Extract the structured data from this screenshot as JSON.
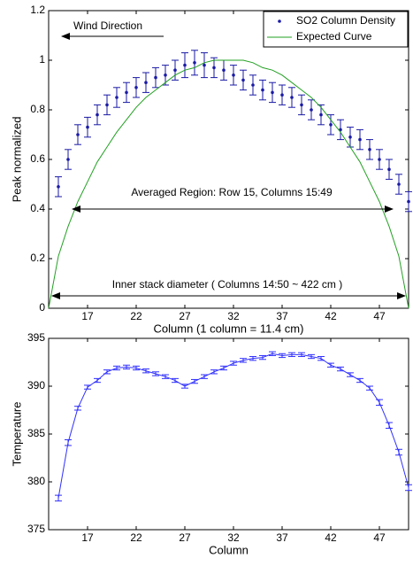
{
  "chart_data": [
    {
      "type": "errorbar",
      "xlabel": "Column (1 column = 11.4 cm)",
      "ylabel": "Peak normalized",
      "xlim": [
        13,
        50
      ],
      "xticks": [
        17,
        22,
        27,
        32,
        37,
        42,
        47
      ],
      "ylim": [
        0,
        1.2
      ],
      "yticks": [
        0,
        0.2,
        0.4,
        0.6,
        0.8,
        1,
        1.2
      ],
      "legend": "northeast",
      "series": [
        {
          "name": "SO2 Column Density",
          "color": "#1a1aa6",
          "mode": "markers",
          "x": [
            14,
            15,
            16,
            17,
            18,
            19,
            20,
            21,
            22,
            23,
            24,
            25,
            26,
            27,
            28,
            29,
            30,
            31,
            32,
            33,
            34,
            35,
            36,
            37,
            38,
            39,
            40,
            41,
            42,
            43,
            44,
            45,
            46,
            47,
            48,
            49,
            50
          ],
          "values": [
            0.49,
            0.6,
            0.7,
            0.73,
            0.78,
            0.82,
            0.85,
            0.87,
            0.89,
            0.91,
            0.93,
            0.94,
            0.96,
            0.98,
            0.99,
            0.98,
            0.97,
            0.96,
            0.94,
            0.92,
            0.9,
            0.88,
            0.87,
            0.86,
            0.85,
            0.82,
            0.8,
            0.78,
            0.74,
            0.72,
            0.69,
            0.68,
            0.64,
            0.6,
            0.56,
            0.5,
            0.43
          ],
          "errors": [
            0.04,
            0.04,
            0.04,
            0.04,
            0.04,
            0.04,
            0.04,
            0.04,
            0.04,
            0.04,
            0.04,
            0.04,
            0.04,
            0.05,
            0.05,
            0.05,
            0.04,
            0.04,
            0.04,
            0.04,
            0.04,
            0.04,
            0.04,
            0.04,
            0.04,
            0.04,
            0.04,
            0.04,
            0.04,
            0.04,
            0.04,
            0.04,
            0.04,
            0.04,
            0.04,
            0.04,
            0.04
          ]
        },
        {
          "name": "Expected Curve",
          "color": "#22a022",
          "mode": "line",
          "x": [
            13,
            14,
            15,
            16,
            17,
            18,
            19,
            20,
            21,
            22,
            23,
            24,
            25,
            26,
            27,
            28,
            29,
            30,
            31,
            32,
            33,
            34,
            35,
            36,
            37,
            38,
            39,
            40,
            41,
            42,
            43,
            44,
            45,
            46,
            47,
            48,
            49,
            50
          ],
          "values": [
            0,
            0.21,
            0.33,
            0.43,
            0.51,
            0.59,
            0.65,
            0.71,
            0.76,
            0.81,
            0.85,
            0.88,
            0.91,
            0.94,
            0.96,
            0.97,
            0.99,
            1,
            1,
            1,
            1,
            0.99,
            0.97,
            0.96,
            0.94,
            0.91,
            0.88,
            0.85,
            0.81,
            0.76,
            0.71,
            0.65,
            0.59,
            0.51,
            0.43,
            0.33,
            0.21,
            0
          ]
        }
      ],
      "annotations": [
        "Wind Direction",
        "Averaged Region: Row 15, Columns 15:49",
        "Inner stack diameter ( Columns 14:50 ~ 422 cm )"
      ]
    },
    {
      "type": "errorbar",
      "xlabel": "Column",
      "ylabel": "Temperature",
      "xlim": [
        13,
        50
      ],
      "xticks": [
        17,
        22,
        27,
        32,
        37,
        42,
        47
      ],
      "ylim": [
        375,
        395
      ],
      "yticks": [
        375,
        380,
        385,
        390,
        395
      ],
      "series": [
        {
          "color": "#3030ff",
          "mode": "line",
          "x": [
            14,
            15,
            16,
            17,
            18,
            19,
            20,
            21,
            22,
            23,
            24,
            25,
            26,
            27,
            28,
            29,
            30,
            31,
            32,
            33,
            34,
            35,
            36,
            37,
            38,
            39,
            40,
            41,
            42,
            43,
            44,
            45,
            46,
            47,
            48,
            49,
            50
          ],
          "values": [
            378.3,
            384.1,
            387.7,
            389.9,
            390.6,
            391.5,
            391.9,
            392.0,
            391.9,
            391.6,
            391.3,
            391.0,
            390.6,
            390.0,
            390.5,
            391.0,
            391.5,
            391.9,
            392.4,
            392.7,
            392.9,
            393.0,
            393.4,
            393.2,
            393.3,
            393.3,
            393.1,
            392.9,
            392.2,
            391.8,
            391.2,
            390.6,
            389.8,
            388.3,
            385.9,
            383.1,
            379.4
          ],
          "errors": [
            0.3,
            0.3,
            0.2,
            0.2,
            0.2,
            0.2,
            0.2,
            0.2,
            0.2,
            0.2,
            0.2,
            0.2,
            0.2,
            0.2,
            0.2,
            0.2,
            0.2,
            0.2,
            0.2,
            0.2,
            0.2,
            0.2,
            0.2,
            0.2,
            0.2,
            0.2,
            0.2,
            0.2,
            0.2,
            0.2,
            0.2,
            0.2,
            0.2,
            0.3,
            0.3,
            0.3,
            0.3
          ]
        }
      ]
    }
  ]
}
